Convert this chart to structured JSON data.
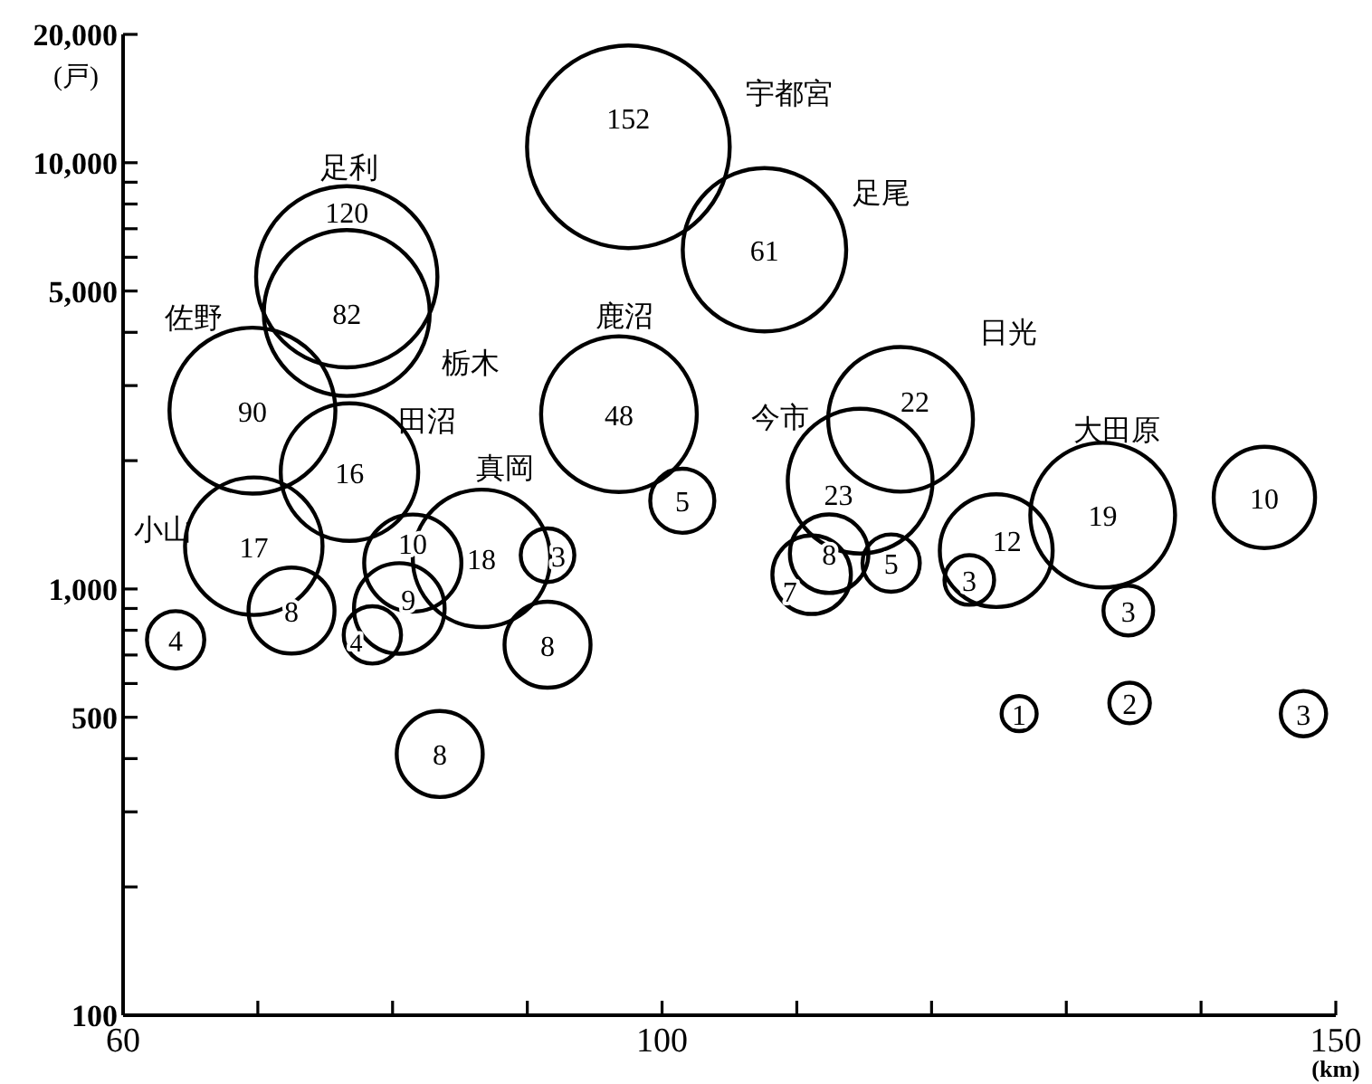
{
  "chart_data": {
    "type": "bubble",
    "xlabel": "(km)",
    "ylabel": "(戸)",
    "log": "y",
    "grid": false,
    "color": "#000000",
    "x": [
      69.7,
      76.8,
      69.6,
      76.6,
      76.6,
      72.5,
      63.9,
      86.6,
      81.5,
      80.5,
      78.5,
      91.5,
      91.5,
      83.5,
      96.8,
      101.5,
      97.5,
      107.6,
      111.1,
      114.7,
      117.7,
      112.4,
      117.0,
      124.8,
      122.8,
      132.7,
      134.6,
      144.7,
      126.5,
      134.7,
      147.6
    ],
    "values": [
      1260,
      1880,
      2620,
      5400,
      4440,
      890,
      760,
      1180,
      1150,
      900,
      780,
      1200,
      740,
      410,
      2570,
      1610,
      10900,
      6250,
      1080,
      1790,
      2500,
      1210,
      1150,
      1230,
      1050,
      1490,
      890,
      1640,
      510,
      540,
      510
    ],
    "sizes": [
      0.46,
      0.46,
      0.67,
      0.8,
      0.67,
      0.18,
      0.08,
      0.46,
      0.23,
      0.2,
      0.08,
      0.07,
      0.18,
      0.18,
      0.59,
      0.1,
      1,
      0.65,
      0.15,
      0.51,
      0.51,
      0.15,
      0.08,
      0.31,
      0.06,
      0.51,
      0.06,
      0.25,
      0.03,
      0.04,
      0.05
    ],
    "xlim": [
      60,
      150
    ],
    "ylim": [
      100,
      20000
    ],
    "xticks": [
      60,
      {
        "value": 70,
        "label": null
      },
      {
        "value": 80,
        "label": null
      },
      {
        "value": 90,
        "label": null
      },
      100,
      {
        "value": 110,
        "label": null
      },
      {
        "value": 120,
        "label": null
      },
      {
        "value": 130,
        "label": null
      },
      {
        "value": 140,
        "label": null
      },
      150
    ],
    "yticks": [
      100,
      {
        "value": 200,
        "label": null
      },
      {
        "value": 300,
        "label": null
      },
      {
        "value": 400,
        "label": null
      },
      500,
      {
        "value": 600,
        "label": null
      },
      {
        "value": 700,
        "label": null
      },
      {
        "value": 800,
        "label": null
      },
      {
        "value": 900,
        "label": null
      },
      {
        "value": 1000,
        "label": "1,000"
      },
      {
        "value": 2000,
        "label": null
      },
      {
        "value": 3000,
        "label": null
      },
      {
        "value": 4000,
        "label": null
      },
      {
        "value": 5000,
        "label": "5,000"
      },
      {
        "value": 6000,
        "label": null
      },
      {
        "value": 7000,
        "label": null
      },
      {
        "value": 8000,
        "label": null
      },
      {
        "value": 9000,
        "label": null
      },
      {
        "value": 10000,
        "label": "10,000"
      },
      {
        "value": 20000,
        "label": "20,000"
      }
    ],
    "annotations": [
      {
        "text": "17",
        "x": 69.7,
        "y": 1260
      },
      {
        "text": "16",
        "x": 76.8,
        "y": 1880
      },
      {
        "text": "90",
        "x": 69.6,
        "y": 2620
      },
      {
        "text": "120",
        "x": 76.6,
        "y": 5400
      },
      {
        "text": "82",
        "x": 76.6,
        "y": 4440
      },
      {
        "text": "8",
        "x": 72.5,
        "y": 890
      },
      {
        "text": "4",
        "x": 63.9,
        "y": 760
      },
      {
        "text": "18",
        "x": 86.6,
        "y": 1180
      },
      {
        "text": "10",
        "x": 81.5,
        "y": 1150
      },
      {
        "text": "9",
        "x": 80.5,
        "y": 900
      },
      {
        "text": "4",
        "x": 78.5,
        "y": 780
      },
      {
        "text": "3",
        "x": 91.5,
        "y": 1200
      },
      {
        "text": "8",
        "x": 91.5,
        "y": 740
      },
      {
        "text": "8",
        "x": 83.5,
        "y": 410
      },
      {
        "text": "48",
        "x": 96.8,
        "y": 2570
      },
      {
        "text": "5",
        "x": 101.5,
        "y": 1610
      },
      {
        "text": "152",
        "x": 97.5,
        "y": 10900
      },
      {
        "text": "61",
        "x": 107.6,
        "y": 6250
      },
      {
        "text": "7",
        "x": 111.1,
        "y": 1080
      },
      {
        "text": "23",
        "x": 114.7,
        "y": 1790
      },
      {
        "text": "22",
        "x": 117.7,
        "y": 2500
      },
      {
        "text": "8",
        "x": 112.4,
        "y": 1210
      },
      {
        "text": "5",
        "x": 117.0,
        "y": 1150
      },
      {
        "text": "12",
        "x": 124.8,
        "y": 1230
      },
      {
        "text": "3",
        "x": 122.8,
        "y": 1050
      },
      {
        "text": "19",
        "x": 132.7,
        "y": 1490
      },
      {
        "text": "3",
        "x": 134.6,
        "y": 890
      },
      {
        "text": "10",
        "x": 144.7,
        "y": 1640
      },
      {
        "text": "1",
        "x": 126.5,
        "y": 510
      },
      {
        "text": "2",
        "x": 134.7,
        "y": 540
      },
      {
        "text": "3",
        "x": 147.6,
        "y": 510
      },
      "足利",
      "栃木",
      "佐野",
      "田沼",
      "真岡",
      "小山",
      "鹿沼",
      "宇都宮",
      "足尾",
      "今市",
      "日光",
      "大田原"
    ]
  }
}
